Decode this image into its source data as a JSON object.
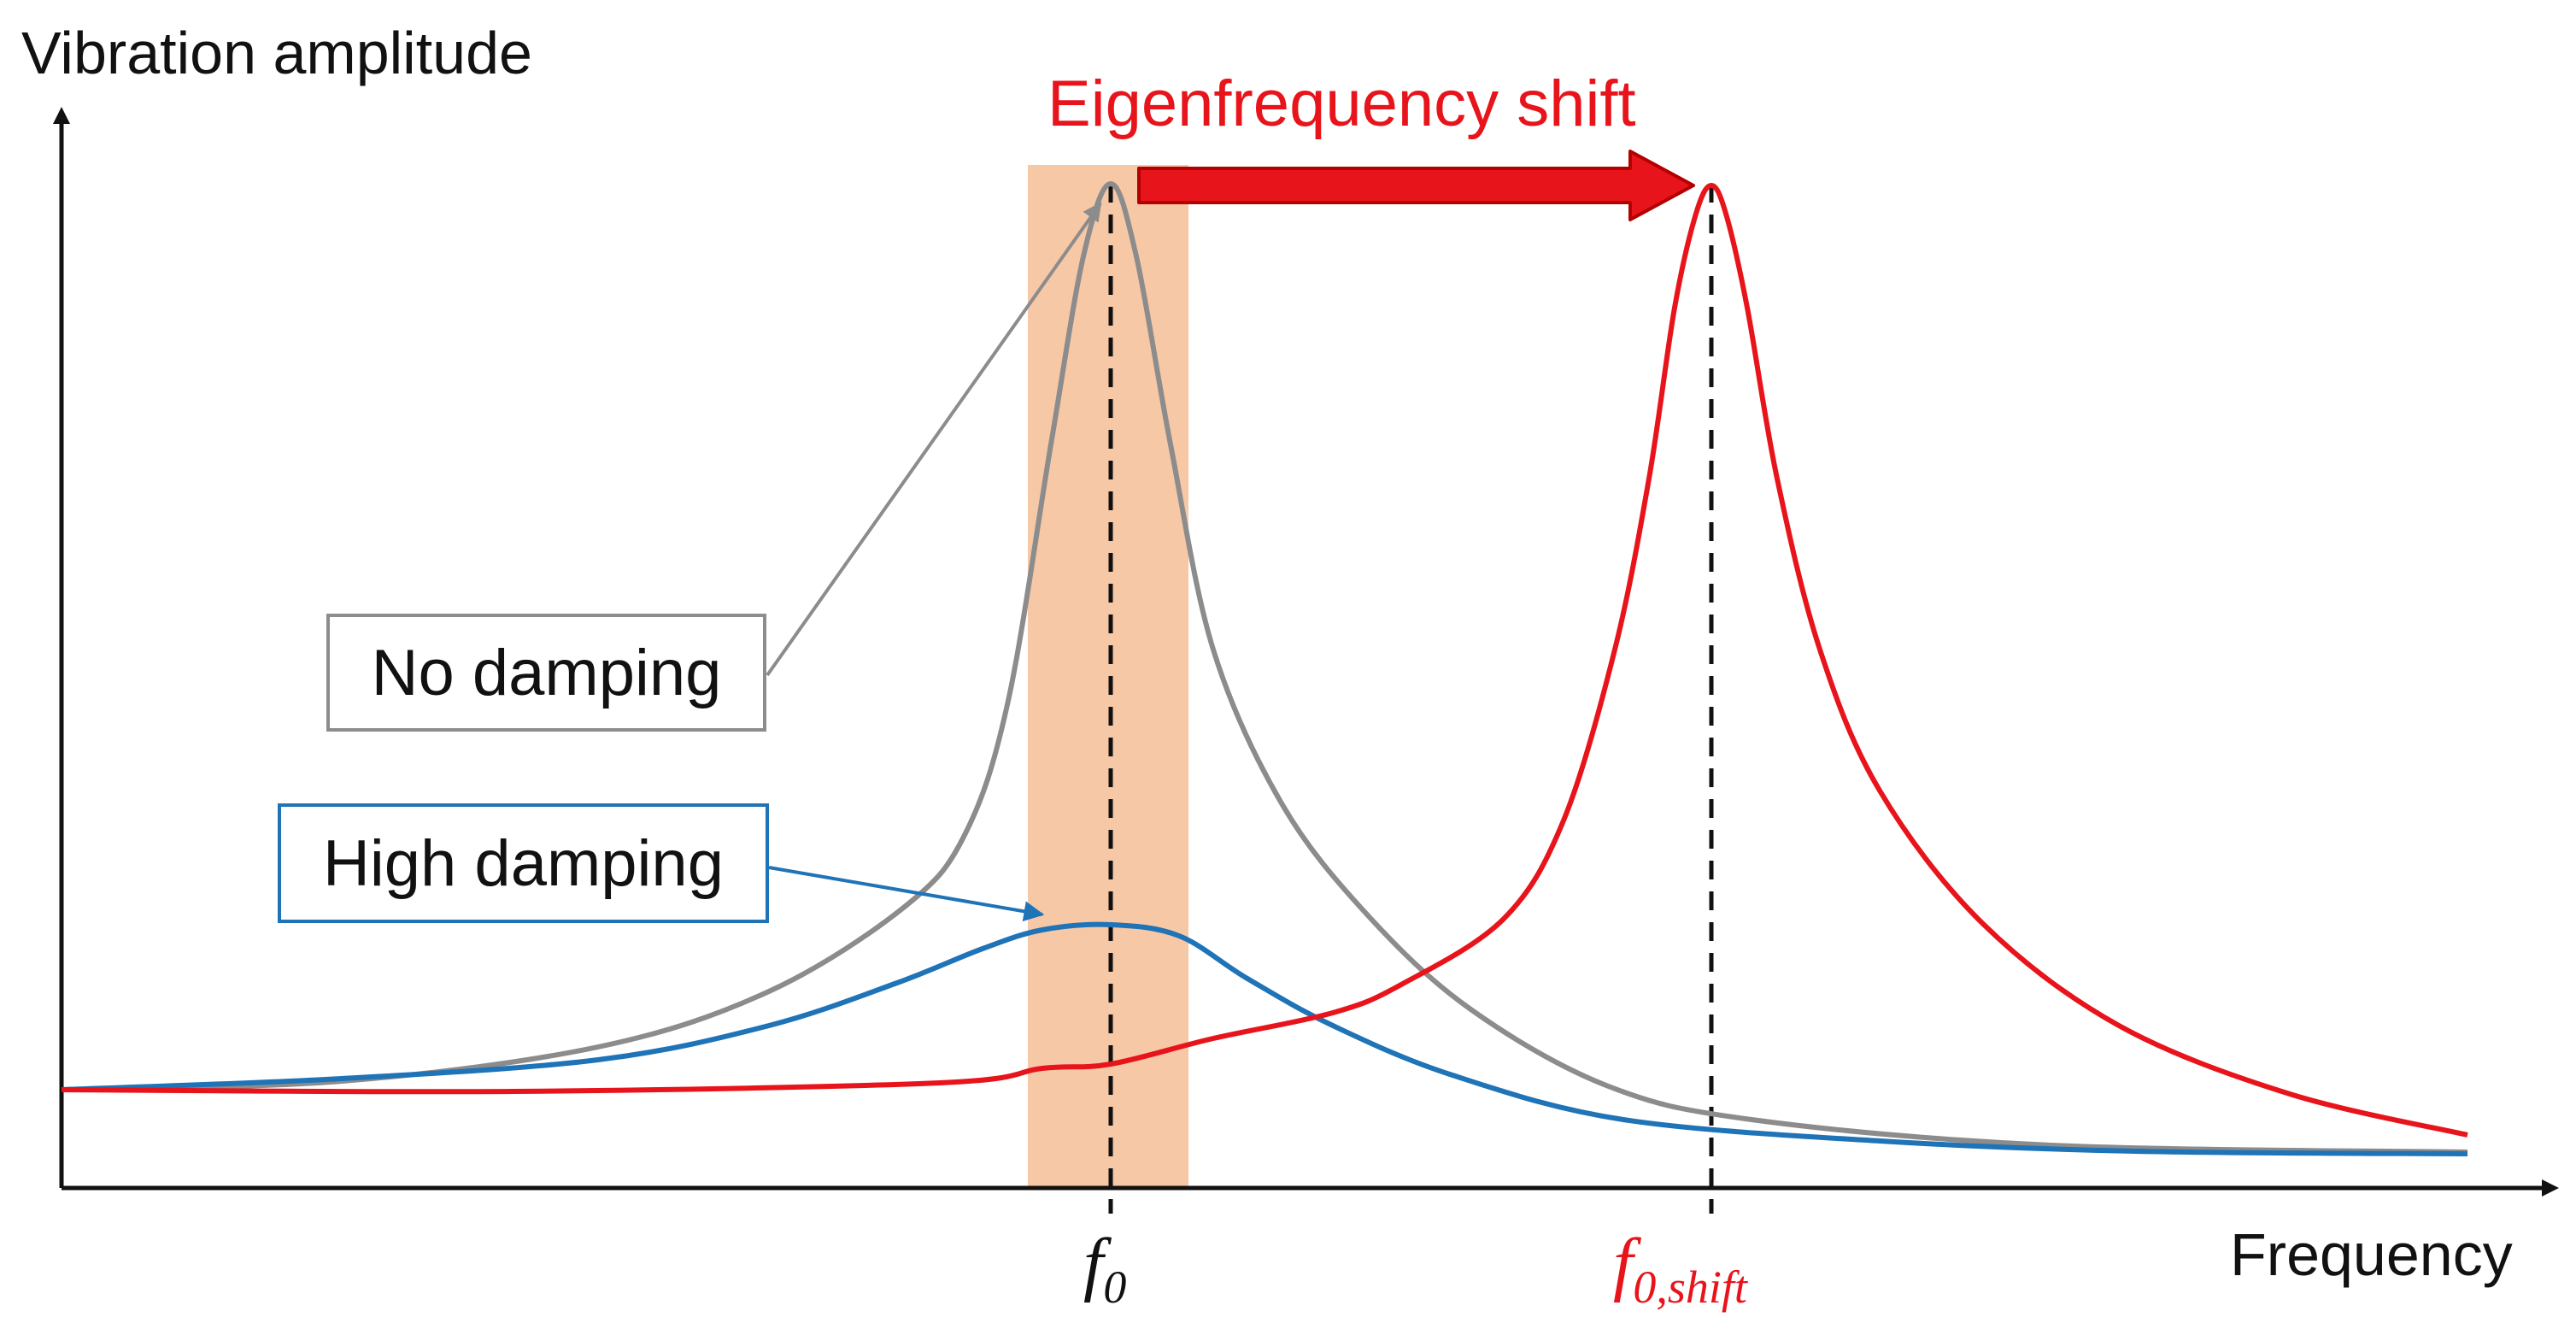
{
  "diagram": {
    "y_axis_label": "Vibration amplitude",
    "x_axis_label": "Frequency",
    "shift_label": "Eigenfrequency shift",
    "tick_f0": {
      "base": "f",
      "sub": "0"
    },
    "tick_f0_shift": {
      "base": "f",
      "sub": "0,shift"
    },
    "callouts": {
      "no_damping": "No damping",
      "high_damping": "High damping"
    },
    "colors": {
      "no_damping_curve": "#8c8c8c",
      "high_damping_curve": "#1f73b7",
      "shifted_curve": "#e8141b",
      "highlight_band": "#f7c8a6",
      "axis": "#111111"
    }
  }
}
